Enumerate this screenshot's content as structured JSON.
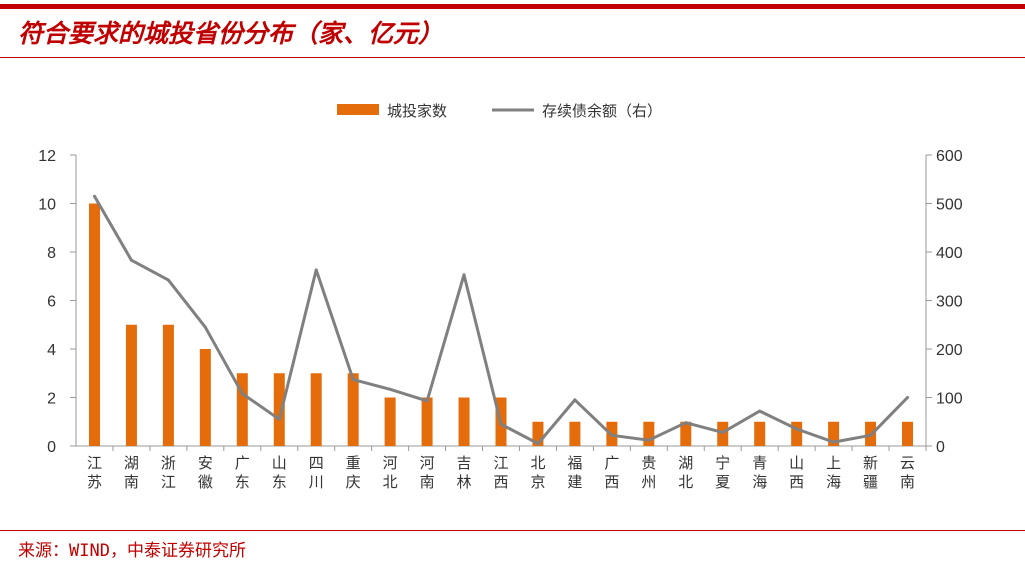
{
  "title": "符合要求的城投省份分布（家、亿元）",
  "source": "来源：WIND，中泰证券研究所",
  "colors": {
    "bar": "#e46c0a",
    "line": "#808080",
    "accent": "#c00000"
  },
  "chart_data": {
    "type": "bar+line",
    "categories": [
      [
        "江",
        "苏"
      ],
      [
        "湖",
        "南"
      ],
      [
        "浙",
        "江"
      ],
      [
        "安",
        "徽"
      ],
      [
        "广",
        "东"
      ],
      [
        "山",
        "东"
      ],
      [
        "四",
        "川"
      ],
      [
        "重",
        "庆"
      ],
      [
        "河",
        "北"
      ],
      [
        "河",
        "南"
      ],
      [
        "吉",
        "林"
      ],
      [
        "江",
        "西"
      ],
      [
        "北",
        "京"
      ],
      [
        "福",
        "建"
      ],
      [
        "广",
        "西"
      ],
      [
        "贵",
        "州"
      ],
      [
        "湖",
        "北"
      ],
      [
        "宁",
        "夏"
      ],
      [
        "青",
        "海"
      ],
      [
        "山",
        "西"
      ],
      [
        "上",
        "海"
      ],
      [
        "新",
        "疆"
      ],
      [
        "云",
        "南"
      ]
    ],
    "series": [
      {
        "name": "城投家数",
        "type": "bar",
        "axis": "left",
        "values": [
          10,
          5,
          5,
          4,
          3,
          3,
          3,
          3,
          2,
          2,
          2,
          2,
          1,
          1,
          1,
          1,
          1,
          1,
          1,
          1,
          1,
          1,
          1
        ]
      },
      {
        "name": "存续债余额（右）",
        "type": "line",
        "axis": "right",
        "values": [
          515,
          383,
          342,
          245,
          108,
          55,
          363,
          137,
          117,
          93,
          353,
          45,
          5,
          95,
          22,
          12,
          48,
          28,
          72,
          35,
          8,
          22,
          100
        ]
      }
    ],
    "y_left": {
      "min": 0,
      "max": 12,
      "ticks": [
        "0",
        "2",
        "4",
        "6",
        "8",
        "10",
        "12"
      ]
    },
    "y_right": {
      "min": 0,
      "max": 600,
      "ticks": [
        "0",
        "100",
        "200",
        "300",
        "400",
        "500",
        "600"
      ]
    },
    "legend_position": "top-center",
    "grid": false
  }
}
